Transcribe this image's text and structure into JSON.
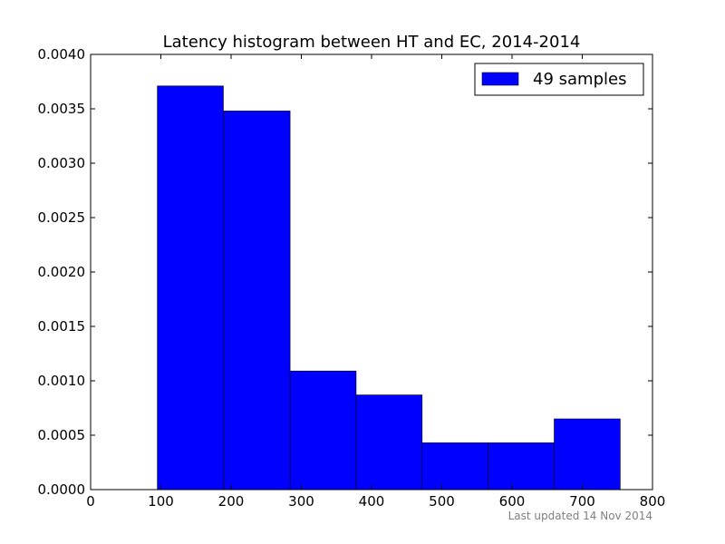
{
  "chart_data": {
    "type": "bar",
    "title": "Latency histogram between HT and EC, 2014-2014",
    "xlabel": "",
    "ylabel": "",
    "xlim": [
      0,
      800
    ],
    "ylim": [
      0,
      0.004
    ],
    "xticks": [
      0,
      100,
      200,
      300,
      400,
      500,
      600,
      700,
      800
    ],
    "xtick_labels": [
      "0",
      "100",
      "200",
      "300",
      "400",
      "500",
      "600",
      "700",
      "800"
    ],
    "yticks": [
      0,
      0.0005,
      0.001,
      0.0015,
      0.002,
      0.0025,
      0.003,
      0.0035,
      0.004
    ],
    "ytick_labels": [
      "0.0000",
      "0.0005",
      "0.0010",
      "0.0015",
      "0.0020",
      "0.0025",
      "0.0030",
      "0.0035",
      "0.0040"
    ],
    "bins": [
      {
        "start": 95,
        "end": 189,
        "value": 0.00371
      },
      {
        "start": 189,
        "end": 284,
        "value": 0.00348
      },
      {
        "start": 284,
        "end": 378,
        "value": 0.00109
      },
      {
        "start": 378,
        "end": 472,
        "value": 0.00087
      },
      {
        "start": 472,
        "end": 566,
        "value": 0.00043
      },
      {
        "start": 566,
        "end": 660,
        "value": 0.00043
      },
      {
        "start": 660,
        "end": 754,
        "value": 0.00065
      }
    ],
    "series": [
      {
        "name": "49 samples",
        "color": "#0000ff"
      }
    ],
    "legend": "top-right",
    "grid": false
  },
  "footer": {
    "note": "Last updated 14 Nov 2014"
  }
}
